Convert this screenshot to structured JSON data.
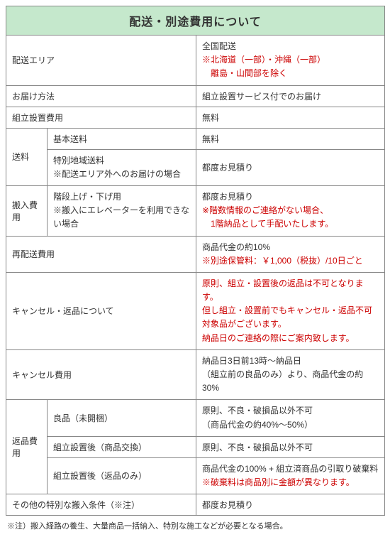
{
  "title": "配送・別途費用について",
  "rows": {
    "deliveryArea": {
      "label": "配送エリア",
      "line1": "全国配送",
      "line2": "※北海道（一部）・沖縄（一部）",
      "line3": "　離島・山間部を除く"
    },
    "method": {
      "label": "お届け方法",
      "value": "組立設置サービス付でのお届け"
    },
    "setupFee": {
      "label": "組立設置費用",
      "value": "無料"
    },
    "shipping": {
      "label": "送料",
      "basic": {
        "label": "基本送料",
        "value": "無料"
      },
      "special": {
        "label1": "特別地域送料",
        "label2": "※配送エリア外へのお届けの場合",
        "value": "都度お見積り"
      }
    },
    "carryIn": {
      "label": "搬入費用",
      "sub1": "階段上げ・下げ用",
      "sub2": "※搬入にエレベーターを利用できない場合",
      "line1": "都度お見積り",
      "line2": "※階数情報のご連絡がない場合、",
      "line3": "　1階納品として手配いたします。"
    },
    "redelivery": {
      "label": "再配送費用",
      "line1": "商品代金の約10%",
      "line2": "※別途保管料：￥1,000（税抜）/10日ごと"
    },
    "cancel": {
      "label": "キャンセル・返品について",
      "line1": "原則、組立・設置後の返品は不可となります。",
      "line2": "但し組立・設置前でもキャンセル・返品不可",
      "line3": "対象品がございます。",
      "line4": "納品日のご連絡の際にご案内致します。"
    },
    "cancelFee": {
      "label": "キャンセル費用",
      "line1": "納品日3日前13時～納品日",
      "line2": "（組立前の良品のみ）より、商品代金の約30%"
    },
    "returnFee": {
      "label": "返品費用",
      "r1": {
        "label": "良品（未開梱）",
        "line1": "原則、不良・破損品以外不可",
        "line2": "（商品代金の約40%～50%）"
      },
      "r2": {
        "label": "組立設置後（商品交換）",
        "value": "原則、不良・破損品以外不可"
      },
      "r3": {
        "label": "組立設置後（返品のみ）",
        "line1": "商品代金の100% + 組立済商品の引取り破棄料",
        "line2": "※破棄料は商品別に金額が異なります。"
      }
    },
    "other": {
      "label": "その他の特別な搬入条件（※注）",
      "value": "都度お見積り"
    }
  },
  "footnote": "※注）搬入経路の養生、大量商品一括納入、特別な施工などが必要となる場合。"
}
